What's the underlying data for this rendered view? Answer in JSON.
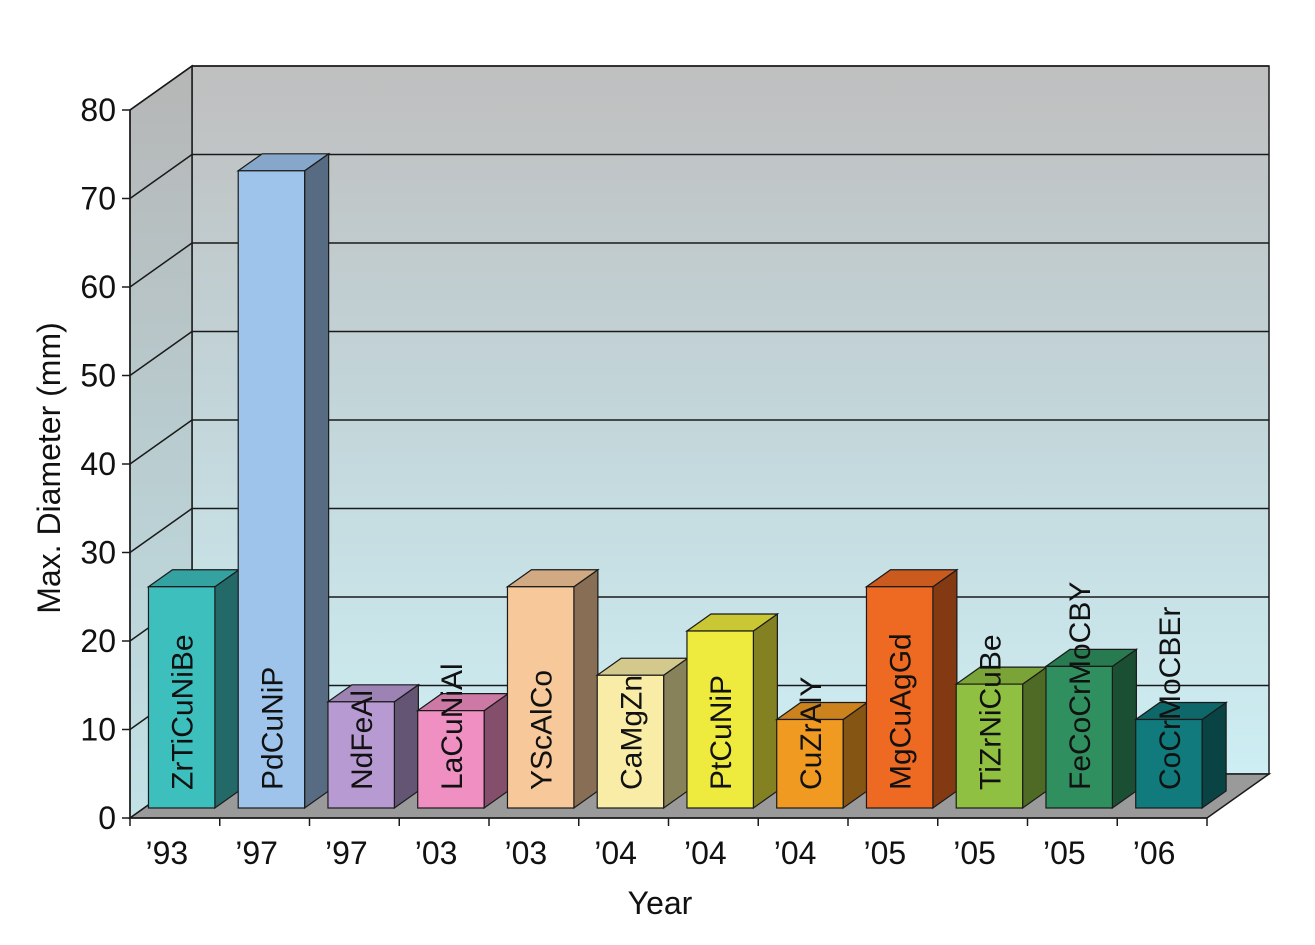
{
  "chart_data": {
    "type": "bar",
    "title": "",
    "xlabel": "Year",
    "ylabel": "Max. Diameter (mm)",
    "ylim": [
      0,
      80
    ],
    "yticks": [
      0,
      10,
      20,
      30,
      40,
      50,
      60,
      70,
      80
    ],
    "grid": true,
    "legend": "none",
    "categories": [
      "’93",
      "’97",
      "’97",
      "’03",
      "’03",
      "’04",
      "’04",
      "’04",
      "’05",
      "’05",
      "’05",
      "’06"
    ],
    "bar_labels": [
      "ZrTiCuNiBe",
      "PdCuNiP",
      "NdFeAl",
      "LaCuNiAl",
      "YScAlCo",
      "CaMgZn",
      "PtCuNiP",
      "CuZrAlY",
      "MgCuAgGd",
      "TiZrNiCuBe",
      "FeCoCrMoCBY",
      "CoCrMoCBEr"
    ],
    "values": [
      25,
      72,
      12,
      11,
      25,
      15,
      20,
      10,
      25,
      14,
      16,
      10
    ],
    "colors": [
      "#3dbfbd",
      "#9ec4ec",
      "#b89ad2",
      "#f08fc2",
      "#f6c89a",
      "#f8eca6",
      "#eeea3e",
      "#f19a22",
      "#ee6a22",
      "#8fc042",
      "#2f8f5e",
      "#117a7c"
    ]
  }
}
